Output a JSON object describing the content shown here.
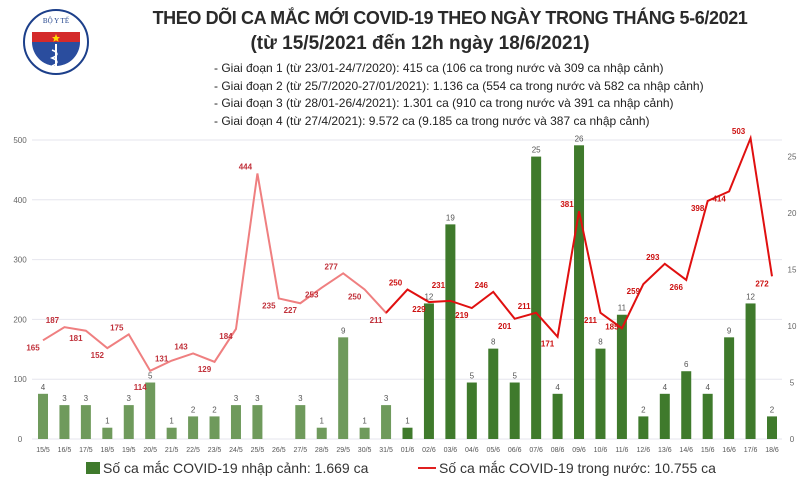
{
  "header": {
    "logo_text": "BỘ Y TẾ · MINISTRY OF HEALTH",
    "title": "THEO DÕI CA MẮC MỚI COVID-19 THEO NGÀY TRONG THÁNG 5-6/2021",
    "subtitle": "(từ 15/5/2021 đến 12h ngày 18/6/2021)",
    "phases": [
      "- Giai đoạn 1 (từ 23/01-24/7/2020): 415 ca (106 ca trong nước và 309 ca nhập cảnh)",
      "- Giai đoạn 2 (từ 25/7/2020-27/01/2021): 1.136 ca (554 ca trong nước và 582 ca nhập cảnh)",
      "- Giai đoạn 3 (từ 28/01-26/4/2021): 1.301 ca (910 ca trong nước và 391 ca nhập cảnh)",
      "- Giai đoạn 4 (từ 27/4/2021): 9.572 ca (9.185 ca trong nước và 387 ca nhập cảnh)"
    ]
  },
  "chart_data": {
    "type": "bar+line",
    "categories": [
      "15/5",
      "16/5",
      "17/5",
      "18/5",
      "19/5",
      "20/5",
      "21/5",
      "22/5",
      "23/5",
      "24/5",
      "25/5",
      "26/5",
      "27/5",
      "28/5",
      "29/5",
      "30/5",
      "31/5",
      "01/6",
      "02/6",
      "03/6",
      "04/6",
      "05/6",
      "06/6",
      "07/6",
      "08/6",
      "09/6",
      "10/6",
      "11/6",
      "12/6",
      "13/6",
      "14/6",
      "15/6",
      "16/6",
      "17/6",
      "18/6"
    ],
    "series": [
      {
        "name": "Số ca mắc COVID-19 nhập cảnh: 1.669 ca",
        "type": "bar",
        "axis": "right",
        "color": "#4a7c34",
        "values": [
          4,
          3,
          3,
          1,
          3,
          5,
          1,
          2,
          2,
          3,
          3,
          0,
          3,
          1,
          9,
          1,
          3,
          1,
          12,
          19,
          5,
          8,
          5,
          25,
          4,
          26,
          8,
          11,
          2,
          4,
          6,
          4,
          9,
          12,
          2
        ]
      },
      {
        "name": "Số ca mắc COVID-19 trong nước: 10.755 ca",
        "type": "line",
        "axis": "left",
        "color": "#e02020",
        "values": [
          165,
          187,
          181,
          152,
          175,
          114,
          131,
          143,
          129,
          184,
          444,
          235,
          227,
          253,
          277,
          250,
          211,
          250,
          229,
          231,
          219,
          246,
          201,
          211,
          171,
          381,
          211,
          185,
          259,
          293,
          266,
          398,
          414,
          503,
          272
        ]
      }
    ],
    "left_axis": {
      "ylim": [
        0,
        510
      ],
      "ticks": [
        0,
        100,
        200,
        300,
        400,
        500
      ]
    },
    "right_axis": {
      "ylim": [
        0,
        27
      ],
      "ticks": [
        0,
        5,
        10,
        15,
        20,
        25
      ]
    },
    "grid": true,
    "legend": "bottom"
  }
}
